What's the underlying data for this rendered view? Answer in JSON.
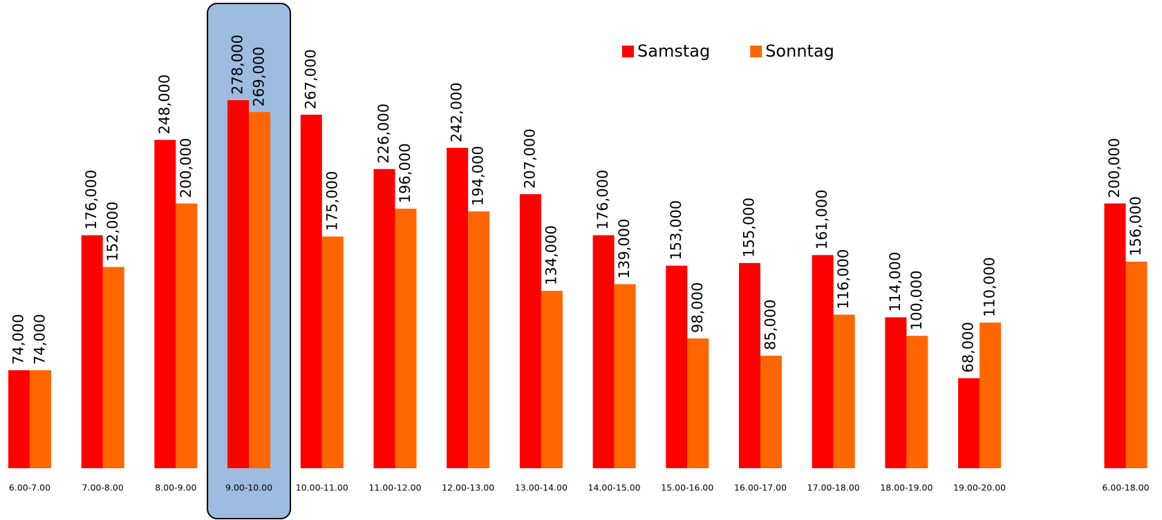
{
  "chart_data": {
    "type": "bar",
    "categories": [
      "6.00-7.00",
      "7.00-8.00",
      "8.00-9.00",
      "9.00-10.00",
      "10.00-11.00",
      "11.00-12.00",
      "12.00-13.00",
      "13.00-14.00",
      "14.00-15.00",
      "15.00-16.00",
      "16.00-17.00",
      "17.00-18.00",
      "18.00-19.00",
      "19.00-20.00",
      null,
      "6.00-18.00"
    ],
    "series": [
      {
        "name": "Samstag",
        "color": "#ff0000",
        "values": [
          74000,
          176000,
          248000,
          278000,
          267000,
          226000,
          242000,
          207000,
          176000,
          153000,
          155000,
          161000,
          114000,
          68000,
          null,
          200000
        ],
        "value_labels": [
          "74,000",
          "176,000",
          "248,000",
          "278,000",
          "267,000",
          "226,000",
          "242,000",
          "207,000",
          "176,000",
          "153,000",
          "155,000",
          "161,000",
          "114,000",
          "68,000",
          null,
          "200,000"
        ]
      },
      {
        "name": "Sonntag",
        "color": "#ff6600",
        "values": [
          74000,
          152000,
          200000,
          269000,
          175000,
          196000,
          194000,
          134000,
          139000,
          98000,
          85000,
          116000,
          100000,
          110000,
          null,
          156000
        ],
        "value_labels": [
          "74,000",
          "152,000",
          "200,000",
          "269,000",
          "175,000",
          "196,000",
          "194,000",
          "134,000",
          "139,000",
          "98,000",
          "85,000",
          "116,000",
          "100,000",
          "110,000",
          null,
          "156,000"
        ]
      }
    ],
    "ylim": [
      0,
      350000
    ],
    "highlight": 3,
    "highlight_color": "#9dbce0",
    "legend": "top"
  }
}
